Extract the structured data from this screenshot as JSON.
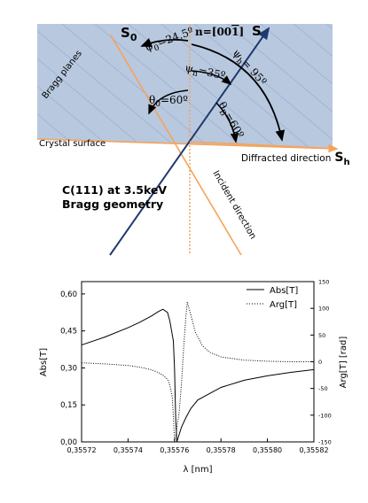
{
  "diagram": {
    "labels": {
      "s0": "S",
      "s0_sub": "0",
      "s": "S",
      "sh": "S",
      "sh_sub": "h",
      "n": "n=[00",
      "n_bar": "1",
      "n_end": "]",
      "psi0": "ψ",
      "psi0_sub": "0",
      "psi0_val": "=24.5º",
      "psih": "ψ",
      "psih_sub": "h",
      "psih_val": "= 95º",
      "psin": "ψ",
      "psin_sub": "n",
      "psin_val": "=35º",
      "theta0": "θ",
      "theta0_sub": "0",
      "theta0_val": "=60º",
      "thetab": "θ",
      "thetab_sub": "B",
      "thetab_val": "=60º",
      "bragg_planes": "Bragg planes",
      "crystal_surface": "Crystal surface",
      "diffracted": "Diffracted direction",
      "incident": "Incident direction",
      "title_line1": "C(111) at 3.5keV",
      "title_line2": "Bragg geometry"
    },
    "colors": {
      "crystal_fill": "#b8c8df",
      "hatch": "#8ea6c8",
      "orange": "#f5a35a",
      "navy": "#1f3a6e",
      "black": "#000000"
    }
  },
  "chart_data": {
    "type": "line",
    "xlabel": "λ [nm]",
    "ylabel_left": "Abs[T]",
    "ylabel_right": "Arg[T] [rad]",
    "xlim": [
      0.35572,
      0.35582
    ],
    "ylim_left": [
      0.0,
      0.65
    ],
    "ylim_right": [
      -150,
      150
    ],
    "x_ticks": [
      "0,35572",
      "0,35574",
      "0,35576",
      "0,35578",
      "0,35580",
      "0,35582"
    ],
    "y_ticks_left": [
      "0,00",
      "0,15",
      "0,30",
      "0,45",
      "0,60"
    ],
    "y_ticks_right": [
      "-150",
      "-100",
      "-50",
      "0",
      "50",
      "100",
      "150"
    ],
    "legend_position": "top-right",
    "series": [
      {
        "name": "Abs[T]",
        "axis": "left",
        "style": "solid",
        "x": [
          0.35572,
          0.35573,
          0.35574,
          0.355745,
          0.35575,
          0.355753,
          0.355755,
          0.355757,
          0.355758,
          0.3557595,
          0.35576,
          0.3557605,
          0.355761,
          0.355762,
          0.355763,
          0.355765,
          0.355767,
          0.35577,
          0.35578,
          0.35579,
          0.3558,
          0.35581,
          0.35582
        ],
        "values": [
          0.393,
          0.425,
          0.463,
          0.485,
          0.51,
          0.528,
          0.538,
          0.525,
          0.49,
          0.41,
          0.3,
          0.1,
          0.0,
          0.03,
          0.06,
          0.1,
          0.135,
          0.17,
          0.221,
          0.25,
          0.268,
          0.282,
          0.293
        ]
      },
      {
        "name": "Arg[T]",
        "axis": "right",
        "style": "dotted",
        "x": [
          0.35572,
          0.35573,
          0.35574,
          0.355745,
          0.35575,
          0.355753,
          0.355755,
          0.355757,
          0.355758,
          0.355759,
          0.3557595,
          0.35576,
          0.3557605,
          0.355761,
          0.355762,
          0.355763,
          0.355764,
          0.3557648,
          0.3557655,
          0.355767,
          0.355769,
          0.355772,
          0.355775,
          0.35578,
          0.35579,
          0.3558,
          0.35581,
          0.35582
        ],
        "values": [
          -2,
          -4,
          -7,
          -10,
          -15,
          -20,
          -25,
          -33,
          -44,
          -65,
          -100,
          -148,
          -140,
          -125,
          -95,
          -40,
          30,
          80,
          112,
          88,
          55,
          30,
          18,
          9,
          3,
          1,
          0,
          0
        ]
      }
    ]
  }
}
